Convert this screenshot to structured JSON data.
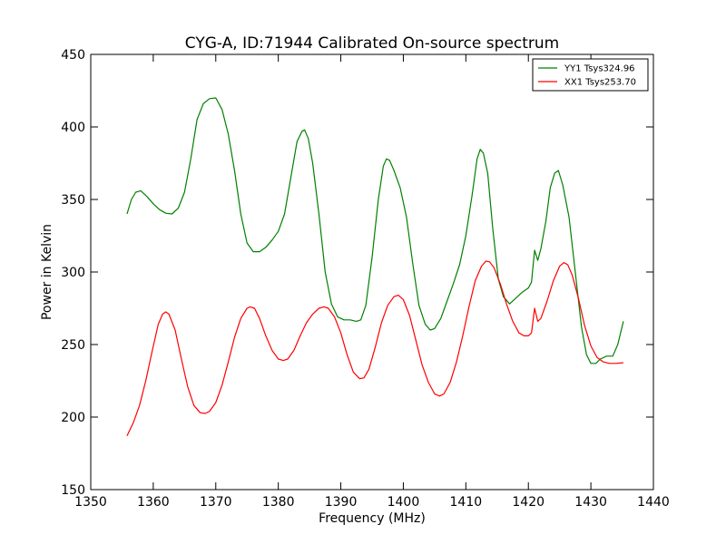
{
  "chart_data": {
    "type": "line",
    "title": "CYG-A, ID:71944 Calibrated On-source spectrum",
    "xlabel": "Frequency (MHz)",
    "ylabel": "Power in Kelvin",
    "xlim": [
      1350,
      1440
    ],
    "ylim": [
      150,
      450
    ],
    "xticks": [
      1350,
      1360,
      1370,
      1380,
      1390,
      1400,
      1410,
      1420,
      1430,
      1440
    ],
    "yticks": [
      150,
      200,
      250,
      300,
      350,
      400,
      450
    ],
    "grid": false,
    "legend_position": "top-right",
    "series": [
      {
        "name": "YY1 Tsys324.96",
        "color": "#008000",
        "points": [
          [
            1355.8,
            340
          ],
          [
            1356.5,
            350
          ],
          [
            1357.2,
            355
          ],
          [
            1358.0,
            356
          ],
          [
            1359.0,
            352
          ],
          [
            1360.0,
            347
          ],
          [
            1361.0,
            343
          ],
          [
            1362.0,
            340.5
          ],
          [
            1363.0,
            340
          ],
          [
            1364.0,
            344
          ],
          [
            1365.0,
            355
          ],
          [
            1366.0,
            378
          ],
          [
            1367.0,
            405
          ],
          [
            1368.0,
            416
          ],
          [
            1369.0,
            419.5
          ],
          [
            1370.0,
            420
          ],
          [
            1371.0,
            412
          ],
          [
            1372.0,
            395
          ],
          [
            1373.0,
            370
          ],
          [
            1374.0,
            340
          ],
          [
            1375.0,
            320
          ],
          [
            1376.0,
            314
          ],
          [
            1377.0,
            314
          ],
          [
            1378.0,
            317
          ],
          [
            1379.0,
            322
          ],
          [
            1380.0,
            328
          ],
          [
            1381.0,
            340
          ],
          [
            1382.0,
            365
          ],
          [
            1383.0,
            390
          ],
          [
            1383.8,
            397
          ],
          [
            1384.2,
            398
          ],
          [
            1384.8,
            392
          ],
          [
            1385.5,
            375
          ],
          [
            1386.5,
            340
          ],
          [
            1387.5,
            300
          ],
          [
            1388.5,
            278
          ],
          [
            1389.5,
            269
          ],
          [
            1390.5,
            267
          ],
          [
            1391.5,
            267
          ],
          [
            1392.5,
            266
          ],
          [
            1393.2,
            267
          ],
          [
            1394.0,
            277
          ],
          [
            1395.0,
            310
          ],
          [
            1396.0,
            350
          ],
          [
            1396.8,
            373
          ],
          [
            1397.3,
            378
          ],
          [
            1397.8,
            377
          ],
          [
            1398.5,
            370
          ],
          [
            1399.5,
            358
          ],
          [
            1400.5,
            338
          ],
          [
            1401.5,
            306
          ],
          [
            1402.5,
            277
          ],
          [
            1403.5,
            264
          ],
          [
            1404.3,
            260
          ],
          [
            1405.0,
            261
          ],
          [
            1406.0,
            268
          ],
          [
            1407.0,
            280
          ],
          [
            1408.0,
            292
          ],
          [
            1409.0,
            305
          ],
          [
            1410.0,
            325
          ],
          [
            1411.0,
            353
          ],
          [
            1411.8,
            378
          ],
          [
            1412.3,
            384.5
          ],
          [
            1412.8,
            382
          ],
          [
            1413.5,
            368
          ],
          [
            1414.3,
            330
          ],
          [
            1415.2,
            295
          ],
          [
            1416.0,
            283
          ],
          [
            1417.0,
            278
          ],
          [
            1418.0,
            282
          ],
          [
            1419.0,
            286
          ],
          [
            1420.0,
            289
          ],
          [
            1420.5,
            293
          ],
          [
            1421.0,
            315
          ],
          [
            1421.5,
            308
          ],
          [
            1422.0,
            316
          ],
          [
            1422.8,
            335
          ],
          [
            1423.5,
            358
          ],
          [
            1424.2,
            368
          ],
          [
            1424.8,
            370
          ],
          [
            1425.5,
            360
          ],
          [
            1426.5,
            338
          ],
          [
            1427.5,
            300
          ],
          [
            1428.5,
            262
          ],
          [
            1429.3,
            243
          ],
          [
            1430.0,
            237
          ],
          [
            1430.8,
            237
          ],
          [
            1431.5,
            240
          ],
          [
            1432.5,
            242
          ],
          [
            1433.5,
            242
          ],
          [
            1434.3,
            250
          ],
          [
            1435.2,
            266
          ]
        ]
      },
      {
        "name": "XX1 Tsys253.70",
        "color": "#ff0000",
        "points": [
          [
            1355.8,
            187
          ],
          [
            1356.8,
            196
          ],
          [
            1357.8,
            208
          ],
          [
            1358.8,
            225
          ],
          [
            1359.8,
            245
          ],
          [
            1360.8,
            264
          ],
          [
            1361.5,
            271
          ],
          [
            1362.0,
            272.5
          ],
          [
            1362.5,
            271
          ],
          [
            1363.5,
            260
          ],
          [
            1364.5,
            240
          ],
          [
            1365.5,
            221
          ],
          [
            1366.5,
            208
          ],
          [
            1367.5,
            203
          ],
          [
            1368.3,
            202.5
          ],
          [
            1369.0,
            204
          ],
          [
            1370.0,
            210
          ],
          [
            1371.0,
            222
          ],
          [
            1372.0,
            238
          ],
          [
            1373.0,
            255
          ],
          [
            1374.0,
            268
          ],
          [
            1375.0,
            275
          ],
          [
            1375.5,
            276
          ],
          [
            1376.2,
            275
          ],
          [
            1377.0,
            268
          ],
          [
            1378.0,
            256
          ],
          [
            1379.0,
            246
          ],
          [
            1380.0,
            240
          ],
          [
            1380.8,
            239
          ],
          [
            1381.5,
            240
          ],
          [
            1382.5,
            246
          ],
          [
            1383.5,
            256
          ],
          [
            1384.5,
            265
          ],
          [
            1385.5,
            271
          ],
          [
            1386.5,
            275
          ],
          [
            1387.3,
            276
          ],
          [
            1388.0,
            275
          ],
          [
            1389.0,
            269
          ],
          [
            1390.0,
            258
          ],
          [
            1391.0,
            243
          ],
          [
            1392.0,
            231
          ],
          [
            1393.0,
            226.5
          ],
          [
            1393.7,
            227
          ],
          [
            1394.5,
            233
          ],
          [
            1395.5,
            248
          ],
          [
            1396.5,
            265
          ],
          [
            1397.5,
            277
          ],
          [
            1398.5,
            283
          ],
          [
            1399.2,
            284
          ],
          [
            1400.0,
            281
          ],
          [
            1401.0,
            270
          ],
          [
            1402.0,
            253
          ],
          [
            1403.0,
            236
          ],
          [
            1404.0,
            224
          ],
          [
            1405.0,
            216
          ],
          [
            1405.8,
            214.5
          ],
          [
            1406.5,
            216
          ],
          [
            1407.5,
            224
          ],
          [
            1408.5,
            238
          ],
          [
            1409.5,
            256
          ],
          [
            1410.5,
            276
          ],
          [
            1411.5,
            294
          ],
          [
            1412.5,
            304
          ],
          [
            1413.2,
            307.5
          ],
          [
            1413.8,
            307
          ],
          [
            1414.5,
            303
          ],
          [
            1415.5,
            292
          ],
          [
            1416.5,
            278
          ],
          [
            1417.5,
            266
          ],
          [
            1418.5,
            258
          ],
          [
            1419.3,
            256
          ],
          [
            1420.0,
            256
          ],
          [
            1420.5,
            258
          ],
          [
            1421.0,
            275
          ],
          [
            1421.5,
            266
          ],
          [
            1422.0,
            268
          ],
          [
            1423.0,
            280
          ],
          [
            1424.0,
            294
          ],
          [
            1425.0,
            304
          ],
          [
            1425.7,
            306.5
          ],
          [
            1426.3,
            305
          ],
          [
            1427.0,
            298
          ],
          [
            1428.0,
            282
          ],
          [
            1429.0,
            263
          ],
          [
            1430.0,
            249
          ],
          [
            1431.0,
            241
          ],
          [
            1432.0,
            238
          ],
          [
            1433.0,
            237
          ],
          [
            1434.0,
            237
          ],
          [
            1435.2,
            237.5
          ]
        ]
      }
    ]
  }
}
